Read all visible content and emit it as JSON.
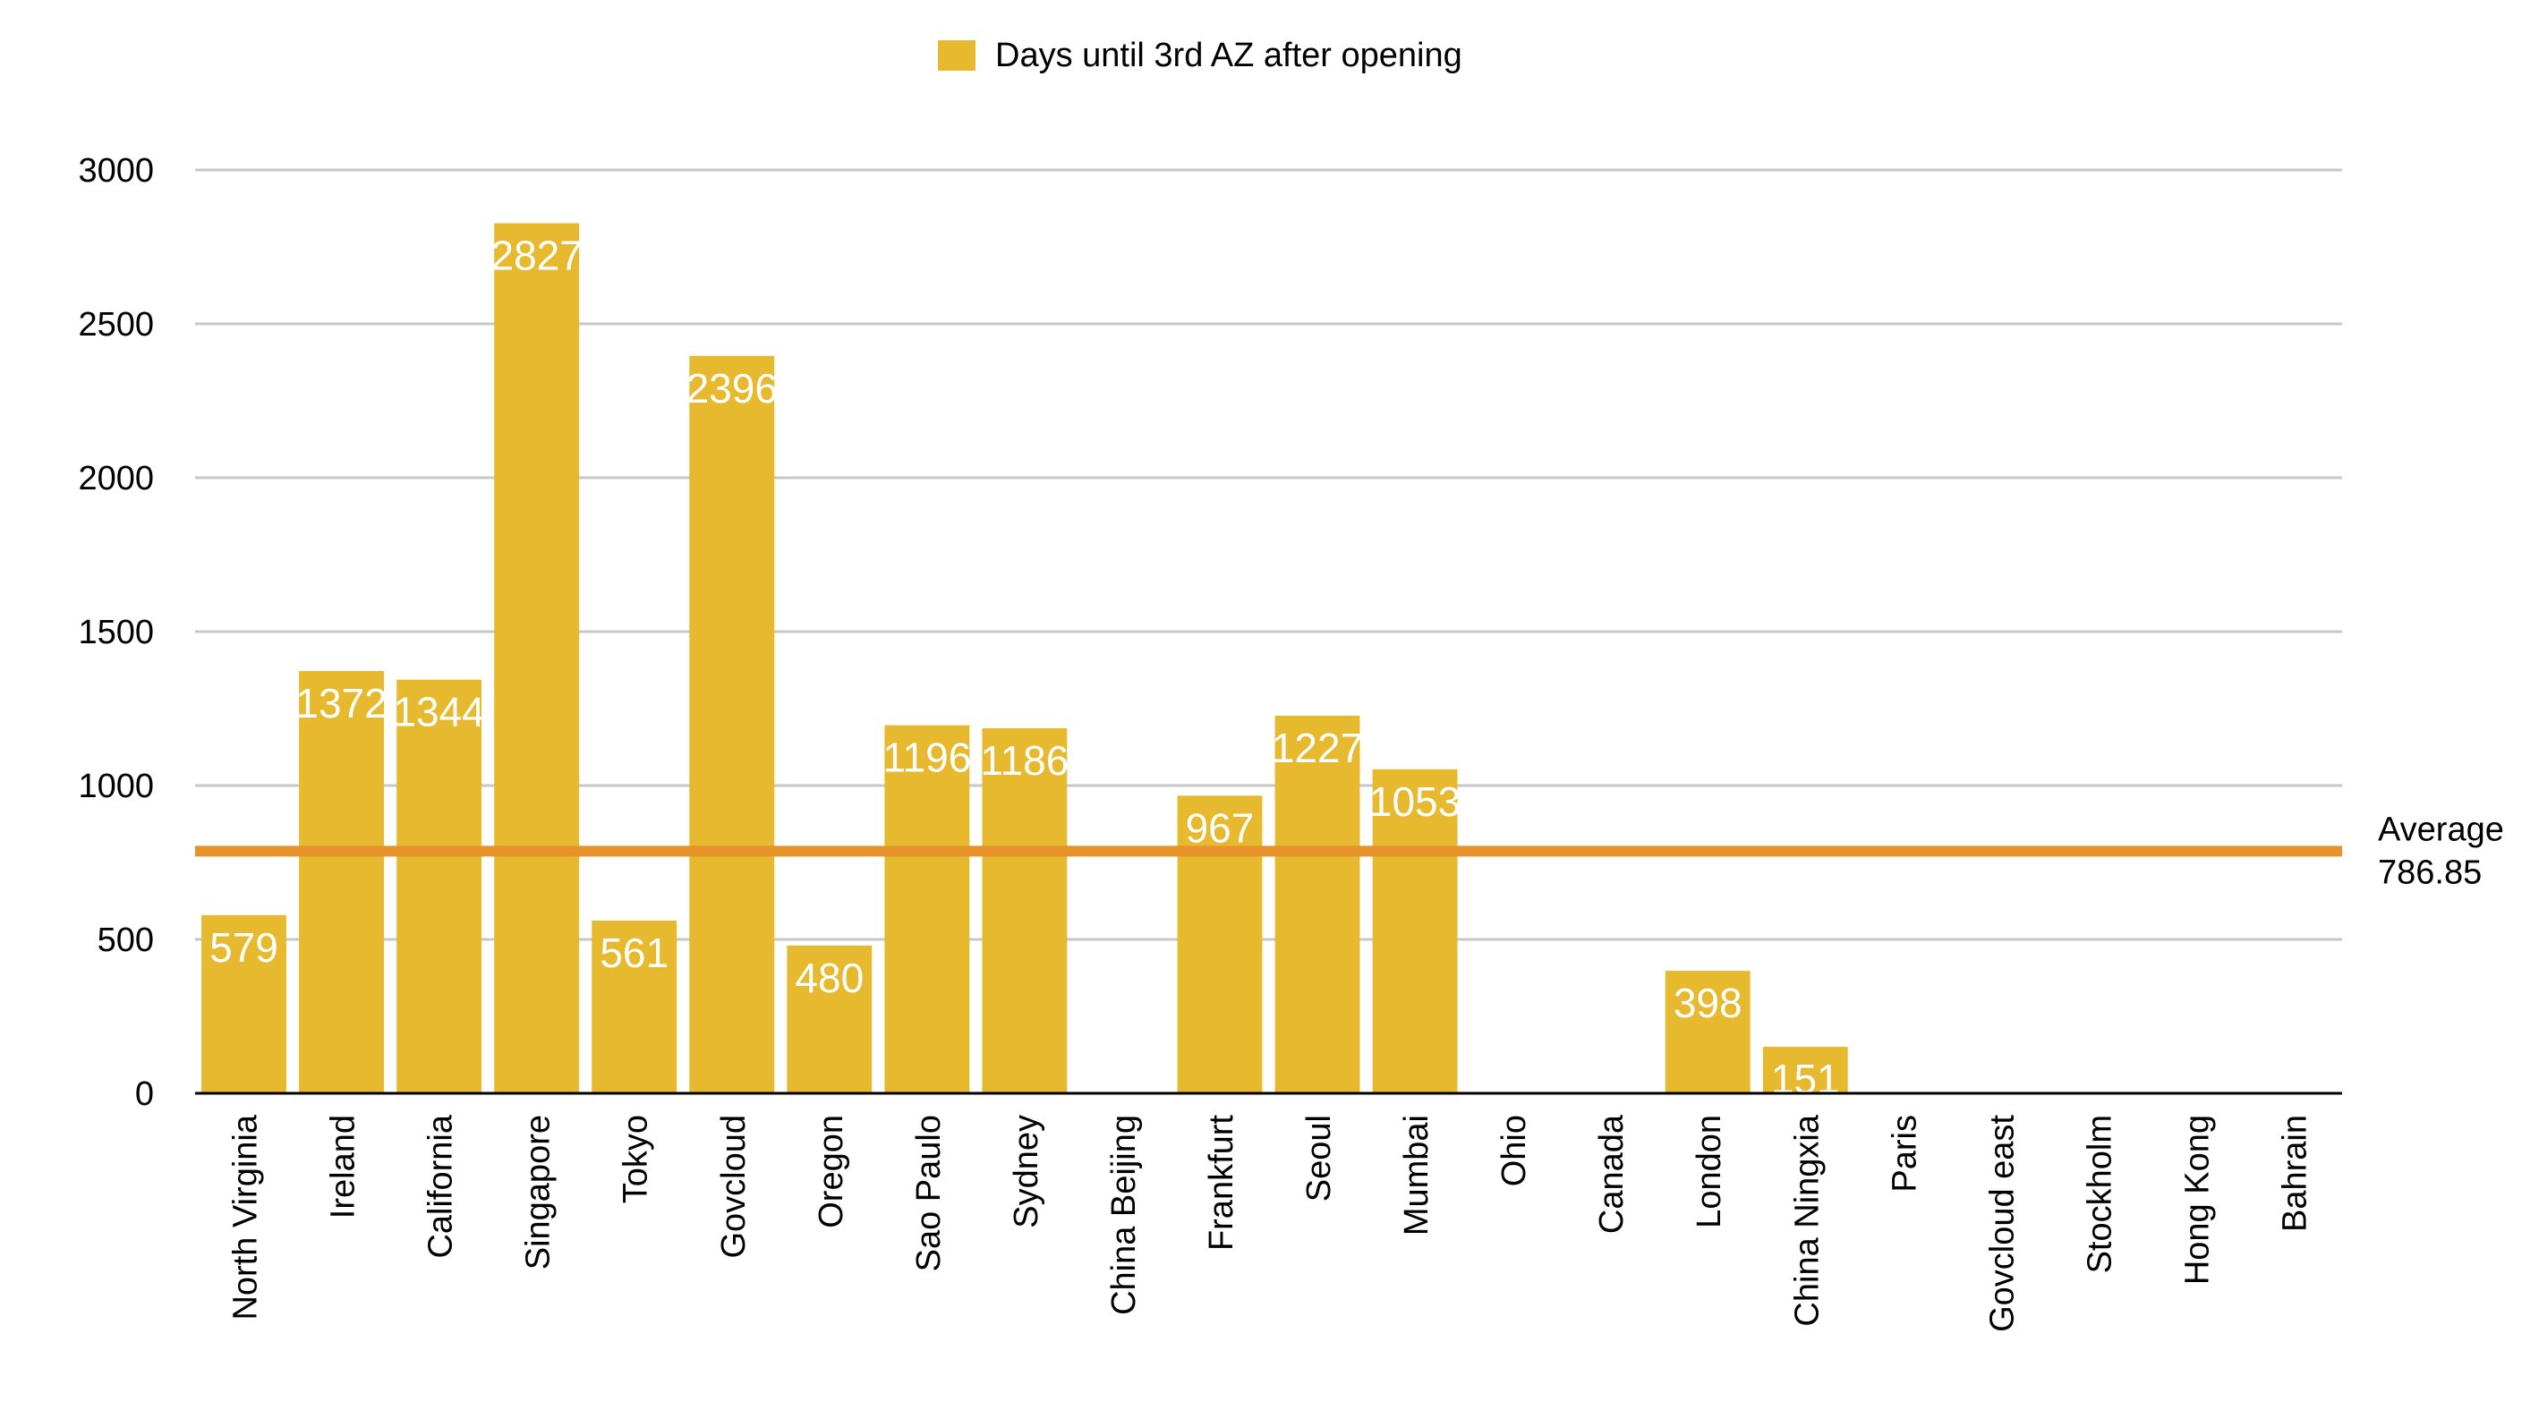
{
  "chart_data": {
    "type": "bar",
    "legend": {
      "label": "Days until 3rd AZ after opening",
      "position": "top-center"
    },
    "categories": [
      "North Virginia",
      "Ireland",
      "California",
      "Singapore",
      "Tokyo",
      "Govcloud",
      "Oregon",
      "Sao Paulo",
      "Sydney",
      "China Beijing",
      "Frankfurt",
      "Seoul",
      "Mumbai",
      "Ohio",
      "Canada",
      "London",
      "China Ningxia",
      "Paris",
      "Govcloud east",
      "Stockholm",
      "Hong Kong",
      "Bahrain"
    ],
    "series": [
      {
        "name": "Days until 3rd AZ after opening",
        "color": "#E6B92F",
        "values": [
          579,
          1372,
          1344,
          2827,
          561,
          2396,
          480,
          1196,
          1186,
          null,
          967,
          1227,
          1053,
          null,
          null,
          398,
          151,
          null,
          null,
          null,
          null,
          null
        ]
      }
    ],
    "data_labels": [
      "579",
      "1372",
      "1344",
      "2827",
      "561",
      "2396",
      "480",
      "1196",
      "1186",
      "",
      "967",
      "1227",
      "1053",
      "",
      "",
      "398",
      "151",
      "",
      "",
      "",
      "",
      ""
    ],
    "y_ticks": [
      "0",
      "500",
      "1000",
      "1500",
      "2000",
      "2500",
      "3000"
    ],
    "ylim": [
      0,
      3000
    ],
    "grid": true,
    "average": {
      "value": 786.85,
      "label_line1": "Average",
      "label_line2": "786.85",
      "color": "#E8932A"
    },
    "colors": {
      "bar": "#E6B92F",
      "grid": "#C7C7C7",
      "axis": "#000000",
      "data_label": "#FFFFFF"
    }
  }
}
